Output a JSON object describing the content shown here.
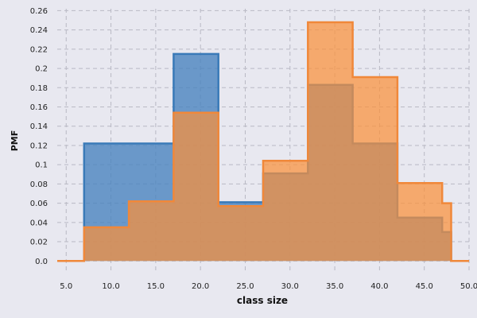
{
  "chart_data": {
    "type": "area",
    "xlabel": "class size",
    "ylabel": "PMF",
    "xlim": [
      4,
      50
    ],
    "ylim": [
      -0.013,
      0.262
    ],
    "x_ticks": [
      5,
      10,
      15,
      20,
      25,
      30,
      35,
      40,
      45,
      50
    ],
    "x_tick_labels": [
      "5.0",
      "10.0",
      "15.0",
      "20.0",
      "25.0",
      "30.0",
      "35.0",
      "40.0",
      "45.0",
      "50.0"
    ],
    "y_ticks": [
      0.0,
      0.02,
      0.04,
      0.06,
      0.08,
      0.1,
      0.12,
      0.14,
      0.16,
      0.18,
      0.2,
      0.22,
      0.24,
      0.26
    ],
    "y_tick_labels": [
      "0.0",
      "0.02",
      "0.04",
      "0.06",
      "0.08",
      "0.1",
      "0.12",
      "0.14",
      "0.16",
      "0.18",
      "0.2",
      "0.22",
      "0.24",
      "0.26"
    ],
    "grid": true,
    "series": [
      {
        "color": "#3a7ab8",
        "fill": "rgba(70,130,190,0.78)",
        "points": [
          [
            4,
            0
          ],
          [
            7,
            0
          ],
          [
            7,
            0.122
          ],
          [
            17,
            0.122
          ],
          [
            17,
            0.215
          ],
          [
            22,
            0.215
          ],
          [
            22,
            0.061
          ],
          [
            27,
            0.061
          ],
          [
            27,
            0.091
          ],
          [
            32,
            0.091
          ],
          [
            32,
            0.183
          ],
          [
            37,
            0.183
          ],
          [
            37,
            0.122
          ],
          [
            42,
            0.122
          ],
          [
            42,
            0.045
          ],
          [
            47,
            0.045
          ],
          [
            47,
            0.03
          ],
          [
            48,
            0.03
          ],
          [
            48,
            0
          ],
          [
            50,
            0
          ]
        ]
      },
      {
        "color": "#f0883a",
        "fill": "rgba(249,144,58,0.72)",
        "points": [
          [
            4,
            0
          ],
          [
            7,
            0
          ],
          [
            7,
            0.035
          ],
          [
            12,
            0.035
          ],
          [
            12,
            0.062
          ],
          [
            17,
            0.062
          ],
          [
            17,
            0.154
          ],
          [
            22,
            0.154
          ],
          [
            22,
            0.057
          ],
          [
            27,
            0.057
          ],
          [
            27,
            0.104
          ],
          [
            32,
            0.104
          ],
          [
            32,
            0.248
          ],
          [
            37,
            0.248
          ],
          [
            37,
            0.191
          ],
          [
            42,
            0.191
          ],
          [
            42,
            0.081
          ],
          [
            47,
            0.081
          ],
          [
            47,
            0.06
          ],
          [
            48,
            0.06
          ],
          [
            48,
            0
          ],
          [
            50,
            0
          ]
        ]
      }
    ]
  }
}
